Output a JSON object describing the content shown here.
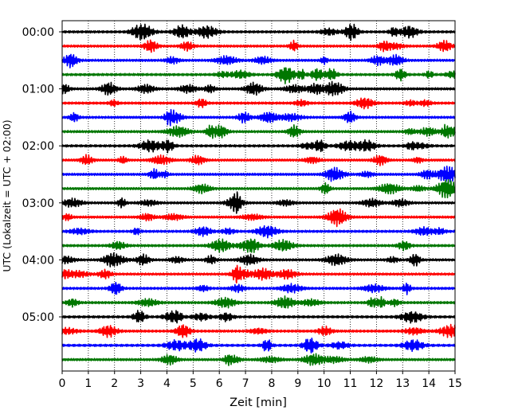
{
  "chart_data": {
    "type": "line",
    "subtype": "dayplot-seismogram",
    "xlabel": "Zeit  [min]",
    "ylabel": "UTC (Lokalzeit = UTC + 02:00)",
    "xlim": [
      0,
      15
    ],
    "x_ticks": [
      0,
      1,
      2,
      3,
      4,
      5,
      6,
      7,
      8,
      9,
      10,
      11,
      12,
      13,
      14,
      15
    ],
    "x_tick_labels": [
      "0",
      "1",
      "2",
      "3",
      "4",
      "5",
      "6",
      "7",
      "8",
      "9",
      "10",
      "11",
      "12",
      "13",
      "14",
      "15"
    ],
    "y_tick_labels": [
      "00:00",
      "01:00",
      "02:00",
      "03:00",
      "04:00",
      "05:00"
    ],
    "interval_minutes": 15,
    "trace_count": 24,
    "trace_colors": [
      "#000000",
      "#ff0000",
      "#0000ff",
      "#007700"
    ],
    "vertical_grid": "dotted",
    "legend": "none",
    "series": [
      {
        "color": "#000000",
        "row_start_times": [
          "00:00",
          "01:00",
          "02:00",
          "03:00",
          "04:00",
          "05:00"
        ]
      },
      {
        "color": "#ff0000",
        "row_start_times": [
          "00:15",
          "01:15",
          "02:15",
          "03:15",
          "04:15",
          "05:15"
        ]
      },
      {
        "color": "#0000ff",
        "row_start_times": [
          "00:30",
          "01:30",
          "02:30",
          "03:30",
          "04:30",
          "05:30"
        ]
      },
      {
        "color": "#007700",
        "row_start_times": [
          "00:45",
          "01:45",
          "02:45",
          "03:45",
          "04:45",
          "05:45"
        ]
      }
    ]
  }
}
